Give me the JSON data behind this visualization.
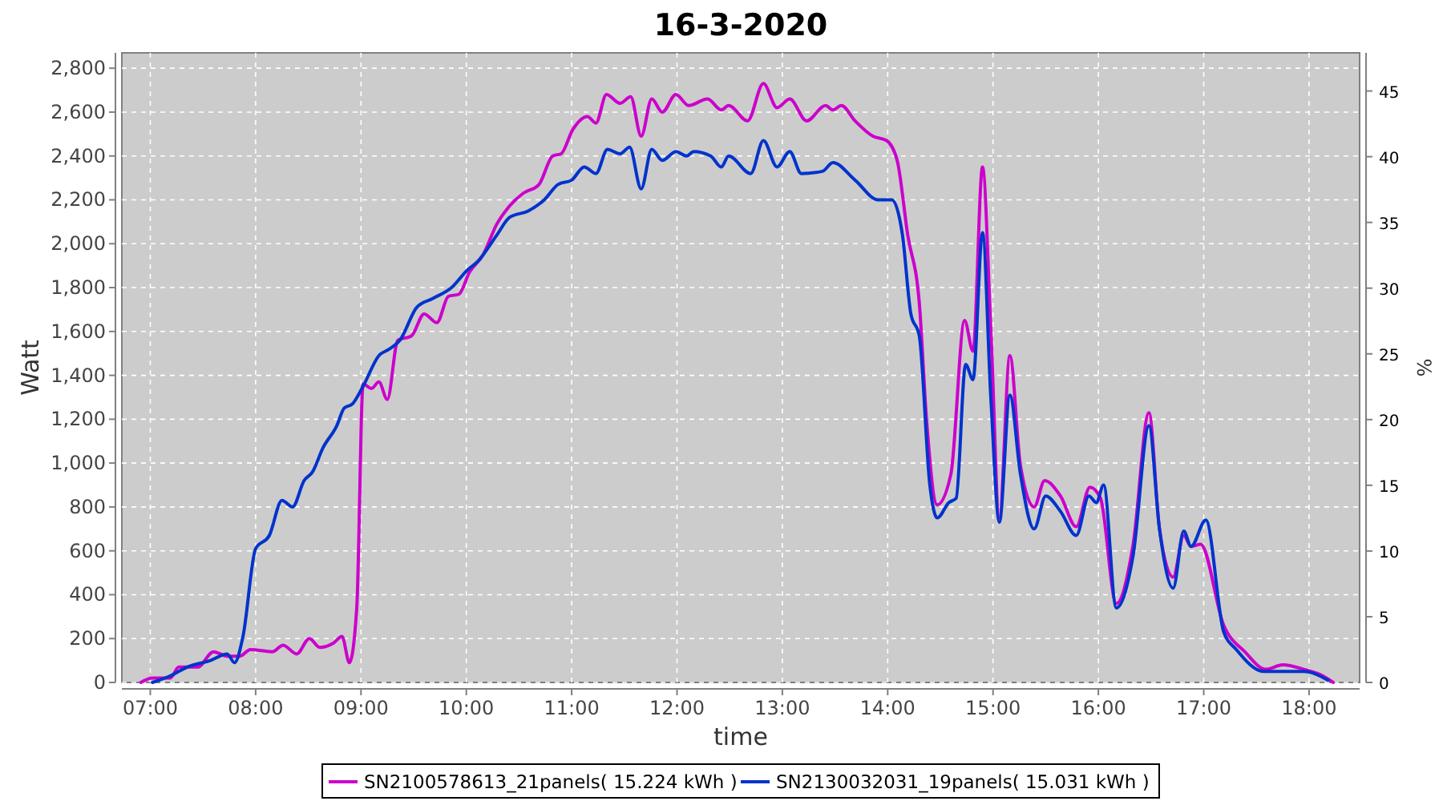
{
  "chart_data": {
    "type": "line",
    "title": "16-3-2020",
    "xlabel": "time",
    "ylabel": "Watt",
    "y2label": "%",
    "xlim": [
      6.73,
      18.48
    ],
    "ylim": [
      0,
      2870
    ],
    "y2lim": [
      0,
      47.9
    ],
    "xticks": [
      {
        "value": 7,
        "label": "07:00"
      },
      {
        "value": 8,
        "label": "08:00"
      },
      {
        "value": 9,
        "label": "09:00"
      },
      {
        "value": 10,
        "label": "10:00"
      },
      {
        "value": 11,
        "label": "11:00"
      },
      {
        "value": 12,
        "label": "12:00"
      },
      {
        "value": 13,
        "label": "13:00"
      },
      {
        "value": 14,
        "label": "14:00"
      },
      {
        "value": 15,
        "label": "15:00"
      },
      {
        "value": 16,
        "label": "16:00"
      },
      {
        "value": 17,
        "label": "17:00"
      },
      {
        "value": 18,
        "label": "18:00"
      }
    ],
    "yticks": [
      0,
      200,
      400,
      600,
      800,
      {
        "value": 1000,
        "label": "1,000"
      },
      {
        "value": 1200,
        "label": "1,200"
      },
      {
        "value": 1400,
        "label": "1,400"
      },
      {
        "value": 1600,
        "label": "1,600"
      },
      {
        "value": 1800,
        "label": "1,800"
      },
      {
        "value": 2000,
        "label": "2,000"
      },
      {
        "value": 2200,
        "label": "2,200"
      },
      {
        "value": 2400,
        "label": "2,400"
      },
      {
        "value": 2600,
        "label": "2,600"
      },
      {
        "value": 2800,
        "label": "2,800"
      }
    ],
    "y2ticks": [
      0,
      5,
      10,
      15,
      20,
      25,
      30,
      35,
      40,
      45
    ],
    "grid": true,
    "legend": "bottom",
    "line_style": "solid",
    "series": [
      {
        "name": "SN2100578613_21panels( 15.224 kWh )",
        "color": "#cc00cc",
        "x": [
          6.91,
          7.02,
          7.19,
          7.27,
          7.45,
          7.6,
          7.73,
          7.85,
          7.95,
          8.16,
          8.26,
          8.39,
          8.51,
          8.61,
          8.74,
          8.82,
          8.89,
          8.96,
          9.02,
          9.1,
          9.17,
          9.25,
          9.35,
          9.48,
          9.6,
          9.72,
          9.83,
          9.93,
          10.03,
          10.16,
          10.29,
          10.39,
          10.54,
          10.69,
          10.82,
          10.9,
          11.01,
          11.15,
          11.23,
          11.33,
          11.46,
          11.56,
          11.66,
          11.76,
          11.86,
          11.99,
          12.11,
          12.29,
          12.42,
          12.49,
          12.67,
          12.82,
          12.95,
          13.07,
          13.23,
          13.41,
          13.48,
          13.56,
          13.69,
          13.86,
          13.99,
          14.09,
          14.19,
          14.3,
          14.37,
          14.47,
          14.6,
          14.73,
          14.81,
          14.9,
          14.98,
          15.06,
          15.16,
          15.26,
          15.39,
          15.49,
          15.64,
          15.79,
          15.92,
          16.02,
          16.17,
          16.33,
          16.48,
          16.58,
          16.71,
          16.81,
          16.88,
          16.97,
          17.19,
          17.39,
          17.59,
          17.75,
          17.95,
          18.13,
          18.23
        ],
        "values": [
          0,
          20,
          20,
          70,
          70,
          140,
          120,
          120,
          150,
          140,
          170,
          130,
          200,
          160,
          180,
          210,
          90,
          340,
          1360,
          1340,
          1370,
          1290,
          1560,
          1580,
          1680,
          1640,
          1760,
          1770,
          1870,
          1950,
          2090,
          2160,
          2230,
          2270,
          2400,
          2410,
          2520,
          2580,
          2550,
          2680,
          2640,
          2670,
          2490,
          2660,
          2600,
          2680,
          2630,
          2660,
          2610,
          2630,
          2560,
          2730,
          2620,
          2660,
          2560,
          2630,
          2610,
          2630,
          2560,
          2490,
          2470,
          2380,
          2040,
          1730,
          1190,
          810,
          950,
          1650,
          1510,
          2350,
          1600,
          750,
          1490,
          990,
          800,
          920,
          850,
          710,
          890,
          840,
          360,
          630,
          1230,
          700,
          480,
          670,
          620,
          630,
          260,
          140,
          60,
          80,
          60,
          30,
          0
        ]
      },
      {
        "name": "SN2130032031_19panels( 15.031 kWh )",
        "color": "#0033cc",
        "x": [
          7.02,
          7.19,
          7.35,
          7.57,
          7.73,
          7.8,
          7.88,
          8.0,
          8.13,
          8.25,
          8.35,
          8.46,
          8.54,
          8.64,
          8.77,
          8.84,
          8.92,
          9.02,
          9.17,
          9.27,
          9.37,
          9.53,
          9.68,
          9.86,
          10.01,
          10.11,
          10.29,
          10.41,
          10.59,
          10.74,
          10.87,
          11.0,
          11.12,
          11.23,
          11.34,
          11.46,
          11.55,
          11.66,
          11.76,
          11.86,
          11.99,
          12.09,
          12.16,
          12.32,
          12.42,
          12.49,
          12.7,
          12.82,
          12.95,
          13.07,
          13.18,
          13.38,
          13.48,
          13.69,
          13.91,
          14.04,
          14.14,
          14.22,
          14.3,
          14.4,
          14.47,
          14.58,
          14.65,
          14.74,
          14.81,
          14.9,
          14.98,
          15.06,
          15.16,
          15.26,
          15.39,
          15.5,
          15.64,
          15.79,
          15.91,
          15.98,
          16.05,
          16.17,
          16.33,
          16.48,
          16.58,
          16.71,
          16.81,
          16.88,
          17.02,
          17.19,
          17.31,
          17.57,
          17.95,
          18.18
        ],
        "values": [
          0,
          30,
          70,
          100,
          130,
          90,
          210,
          610,
          670,
          830,
          800,
          920,
          960,
          1070,
          1170,
          1250,
          1270,
          1350,
          1490,
          1520,
          1560,
          1710,
          1750,
          1800,
          1880,
          1920,
          2040,
          2120,
          2150,
          2200,
          2270,
          2290,
          2350,
          2320,
          2430,
          2410,
          2440,
          2250,
          2430,
          2380,
          2420,
          2400,
          2420,
          2400,
          2350,
          2400,
          2320,
          2470,
          2350,
          2420,
          2320,
          2330,
          2370,
          2290,
          2200,
          2200,
          2040,
          1680,
          1580,
          900,
          750,
          820,
          840,
          1450,
          1380,
          2050,
          1290,
          730,
          1310,
          950,
          700,
          850,
          780,
          670,
          850,
          820,
          900,
          340,
          580,
          1170,
          700,
          430,
          690,
          620,
          740,
          230,
          150,
          50,
          50,
          10
        ]
      }
    ]
  }
}
